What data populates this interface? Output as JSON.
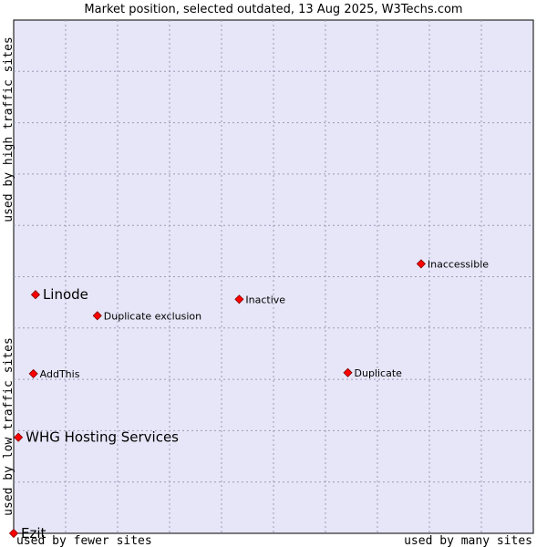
{
  "chart_data": {
    "type": "scatter",
    "title": "Market position, selected outdated, 13 Aug 2025, W3Techs.com",
    "xlabel_left": "used by fewer sites",
    "xlabel_right": "used by many sites",
    "ylabel_top": "used by high traffic sites",
    "ylabel_bottom": "used by low traffic sites",
    "xlim": [
      0,
      10
    ],
    "ylim": [
      0,
      10
    ],
    "grid": true,
    "plot_background": "#e6e6f8",
    "point_color": "#ff0000",
    "points": [
      {
        "label": "Linode",
        "x": 0.42,
        "y": 4.65,
        "emphasis": true
      },
      {
        "label": "WHG Hosting Services",
        "x": 0.09,
        "y": 1.87,
        "emphasis": true
      },
      {
        "label": "Ezit",
        "x": 0.0,
        "y": 0.0,
        "emphasis": true
      },
      {
        "label": "Inaccessible",
        "x": 7.84,
        "y": 5.25,
        "emphasis": false
      },
      {
        "label": "Inactive",
        "x": 4.34,
        "y": 4.56,
        "emphasis": false
      },
      {
        "label": "Duplicate exclusion",
        "x": 1.61,
        "y": 4.24,
        "emphasis": false
      },
      {
        "label": "AddThis",
        "x": 0.38,
        "y": 3.11,
        "emphasis": false
      },
      {
        "label": "Duplicate",
        "x": 6.43,
        "y": 3.13,
        "emphasis": false
      }
    ]
  }
}
